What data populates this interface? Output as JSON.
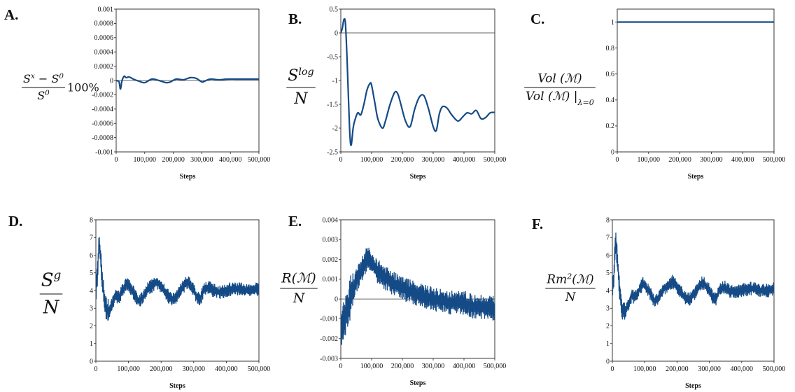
{
  "chart_data": [
    {
      "id": "A",
      "panel_label": "A.",
      "type": "line",
      "style": "smooth",
      "ylabel": {
        "num": "S",
        "num_sup": "x",
        "num_rest": " − S",
        "num_rest_sup": "0",
        "den": "S",
        "den_sup": "0",
        "suffix": "100%"
      },
      "xlabel": "Steps",
      "xlim": [
        0,
        500000
      ],
      "ylim": [
        -0.001,
        0.001
      ],
      "xticks": [
        0,
        100000,
        200000,
        300000,
        400000,
        500000
      ],
      "xtick_labels": [
        "0",
        "100,000",
        "200,000",
        "300,000",
        "400,000",
        "500,000"
      ],
      "yticks": [
        -0.001,
        -0.0008,
        -0.0006,
        -0.0004,
        -0.0002,
        0,
        0.0002,
        0.0004,
        0.0006,
        0.0008,
        0.001
      ],
      "ytick_labels": [
        "-0.001",
        "-0.0008",
        "-0.0006",
        "-0.0004",
        "-0.0002",
        "0",
        "0.0002",
        "0.0004",
        "0.0006",
        "0.0008",
        "0.001"
      ],
      "zero_line": true,
      "series": [
        {
          "name": "A",
          "x": [
            0,
            10000,
            15000,
            20000,
            28000,
            35000,
            45000,
            60000,
            80000,
            100000,
            125000,
            150000,
            175000,
            190000,
            210000,
            235000,
            260000,
            280000,
            300000,
            310000,
            330000,
            360000,
            390000,
            420000,
            450000,
            480000,
            500000
          ],
          "y": [
            0,
            -2e-05,
            -0.00012,
            -1e-05,
            6e-05,
            4e-05,
            5e-05,
            2e-05,
            -1e-05,
            -3e-05,
            2e-05,
            0,
            -3e-05,
            -2e-05,
            2e-05,
            1e-05,
            4e-05,
            3e-05,
            -2e-05,
            -1e-05,
            2e-05,
            1e-05,
            2e-05,
            2e-05,
            2e-05,
            2e-05,
            2e-05
          ]
        }
      ]
    },
    {
      "id": "B",
      "panel_label": "B.",
      "type": "line",
      "style": "smooth",
      "ylabel": {
        "num": "S",
        "num_sup": "log",
        "den": "N"
      },
      "xlabel": "Steps",
      "xlim": [
        0,
        500000
      ],
      "ylim": [
        -2.5,
        0.5
      ],
      "xticks": [
        0,
        100000,
        200000,
        300000,
        400000,
        500000
      ],
      "xtick_labels": [
        "0",
        "100,000",
        "200,000",
        "300,000",
        "400,000",
        "500,000"
      ],
      "yticks": [
        -2.5,
        -2,
        -1.5,
        -1,
        -0.5,
        0,
        0.5
      ],
      "ytick_labels": [
        "-2.5",
        "-2",
        "-1.5",
        "-1",
        "-0.5",
        "0",
        "0.5"
      ],
      "zero_line": true,
      "series": [
        {
          "name": "B",
          "x": [
            0,
            5000,
            10000,
            15000,
            20000,
            25000,
            30000,
            34000,
            40000,
            45000,
            55000,
            65000,
            75000,
            85000,
            95000,
            100000,
            110000,
            120000,
            135000,
            145000,
            160000,
            175000,
            185000,
            195000,
            210000,
            225000,
            240000,
            255000,
            270000,
            285000,
            300000,
            310000,
            320000,
            330000,
            345000,
            360000,
            380000,
            395000,
            410000,
            425000,
            440000,
            455000,
            470000,
            485000,
            500000
          ],
          "y": [
            0,
            0.1,
            0.28,
            0.2,
            -0.5,
            -1.4,
            -2.2,
            -2.35,
            -2.0,
            -1.85,
            -1.68,
            -1.72,
            -1.5,
            -1.2,
            -1.06,
            -1.1,
            -1.45,
            -1.8,
            -2.0,
            -1.85,
            -1.5,
            -1.25,
            -1.28,
            -1.5,
            -1.85,
            -1.97,
            -1.6,
            -1.35,
            -1.32,
            -1.6,
            -1.97,
            -2.05,
            -1.7,
            -1.55,
            -1.58,
            -1.72,
            -1.85,
            -1.77,
            -1.68,
            -1.7,
            -1.63,
            -1.8,
            -1.78,
            -1.68,
            -1.67
          ]
        }
      ]
    },
    {
      "id": "C",
      "panel_label": "C.",
      "type": "line",
      "style": "smooth",
      "ylabel": {
        "num": "Vol (ℳ)",
        "den": "Vol (ℳ) |",
        "den_sub": "λ=0"
      },
      "xlabel": "Steps",
      "xlim": [
        0,
        500000
      ],
      "ylim": [
        0,
        1.1
      ],
      "xticks": [
        0,
        100000,
        200000,
        300000,
        400000,
        500000
      ],
      "xtick_labels": [
        "0",
        "100,000",
        "200,000",
        "300,000",
        "400,000",
        "500,000"
      ],
      "yticks": [
        0,
        0.2,
        0.4,
        0.6,
        0.8,
        1
      ],
      "ytick_labels": [
        "0",
        "0.2",
        "0.4",
        "0.6",
        "0.8",
        "1"
      ],
      "zero_line": false,
      "series": [
        {
          "name": "C",
          "x": [
            0,
            100000,
            200000,
            300000,
            400000,
            500000
          ],
          "y": [
            1,
            1,
            1,
            1,
            1,
            1
          ]
        }
      ]
    },
    {
      "id": "D",
      "panel_label": "D.",
      "type": "line",
      "style": "noisy",
      "ylabel": {
        "num": "S",
        "num_sup": "g",
        "den": "N"
      },
      "xlabel": "Steps",
      "xlim": [
        0,
        500000
      ],
      "ylim": [
        0,
        8
      ],
      "xticks": [
        0,
        100000,
        200000,
        300000,
        400000,
        500000
      ],
      "xtick_labels": [
        "0",
        "100,000",
        "200,000",
        "300,000",
        "400,000",
        "500,000"
      ],
      "yticks": [
        0,
        1,
        2,
        3,
        4,
        5,
        6,
        7,
        8
      ],
      "ytick_labels": [
        "0",
        "1",
        "2",
        "3",
        "4",
        "5",
        "6",
        "7",
        "8"
      ],
      "zero_line": false,
      "noise_amplitude": 0.28,
      "series": [
        {
          "name": "D",
          "x": [
            0,
            5000,
            10000,
            15000,
            20000,
            25000,
            30000,
            40000,
            50000,
            60000,
            70000,
            85000,
            95000,
            100000,
            115000,
            130000,
            145000,
            160000,
            175000,
            185000,
            195000,
            210000,
            225000,
            240000,
            260000,
            275000,
            285000,
            300000,
            310000,
            320000,
            330000,
            345000,
            360000,
            380000,
            400000,
            420000,
            440000,
            460000,
            480000,
            500000
          ],
          "y": [
            3.8,
            5.0,
            6.8,
            5.8,
            4.5,
            3.6,
            3.0,
            2.8,
            3.2,
            3.7,
            3.6,
            4.1,
            4.4,
            4.3,
            3.9,
            3.4,
            3.6,
            4.1,
            4.3,
            4.5,
            4.3,
            4.0,
            3.6,
            3.5,
            4.0,
            4.4,
            4.4,
            4.0,
            3.6,
            3.5,
            4.0,
            4.2,
            4.0,
            3.9,
            4.0,
            4.1,
            4.1,
            4.0,
            4.0,
            4.1
          ]
        }
      ]
    },
    {
      "id": "E",
      "panel_label": "E.",
      "type": "line",
      "style": "noisy",
      "ylabel": {
        "num": "R(ℳ)",
        "den": "N"
      },
      "xlabel": "Steps",
      "xlim": [
        0,
        500000
      ],
      "ylim": [
        -0.003,
        0.004
      ],
      "xticks": [
        0,
        100000,
        200000,
        300000,
        400000,
        500000
      ],
      "xtick_labels": [
        "0",
        "100,000",
        "200,000",
        "300,000",
        "400,000",
        "500,000"
      ],
      "yticks": [
        -0.003,
        -0.002,
        -0.001,
        0,
        0.001,
        0.002,
        0.003,
        0.004
      ],
      "ytick_labels": [
        "-0.003",
        "-0.002",
        "-0.001",
        "0",
        "0.001",
        "0.002",
        "0.003",
        "0.004"
      ],
      "zero_line": true,
      "noise_amplitude": 0.00045,
      "series": [
        {
          "name": "E",
          "x": [
            0,
            5000,
            10000,
            20000,
            30000,
            40000,
            50000,
            60000,
            70000,
            80000,
            90000,
            100000,
            110000,
            120000,
            140000,
            160000,
            180000,
            200000,
            220000,
            250000,
            280000,
            300000,
            330000,
            360000,
            380000,
            400000,
            430000,
            460000,
            480000,
            500000
          ],
          "y": [
            -0.0016,
            -0.0013,
            -0.001,
            -0.0005,
            0,
            0.0005,
            0.0009,
            0.0012,
            0.0015,
            0.0019,
            0.0021,
            0.0018,
            0.0016,
            0.0014,
            0.0011,
            0.0009,
            0.0007,
            0.0005,
            0.0004,
            0.0002,
            0.0001,
            0,
            -0.0001,
            -0.0002,
            -0.0001,
            -0.0002,
            -0.0004,
            -0.0004,
            -0.0004,
            -0.0005
          ]
        }
      ]
    },
    {
      "id": "F",
      "panel_label": "F.",
      "type": "line",
      "style": "noisy",
      "ylabel": {
        "num": "Rm",
        "num_sup": "2",
        "num_rest": "(ℳ)",
        "den": "N"
      },
      "xlabel": "Steps",
      "xlim": [
        0,
        500000
      ],
      "ylim": [
        0,
        8
      ],
      "xticks": [
        0,
        100000,
        200000,
        300000,
        400000,
        500000
      ],
      "xtick_labels": [
        "0",
        "100,000",
        "200,000",
        "300,000",
        "400,000",
        "500,000"
      ],
      "yticks": [
        0,
        1,
        2,
        3,
        4,
        5,
        6,
        7,
        8
      ],
      "ytick_labels": [
        "0",
        "1",
        "2",
        "3",
        "4",
        "5",
        "6",
        "7",
        "8"
      ],
      "zero_line": false,
      "noise_amplitude": 0.28,
      "series": [
        {
          "name": "F",
          "x": [
            0,
            5000,
            10000,
            15000,
            20000,
            25000,
            30000,
            40000,
            50000,
            60000,
            70000,
            85000,
            95000,
            100000,
            115000,
            130000,
            145000,
            160000,
            175000,
            185000,
            195000,
            210000,
            225000,
            240000,
            260000,
            275000,
            285000,
            300000,
            310000,
            320000,
            330000,
            345000,
            360000,
            380000,
            400000,
            420000,
            440000,
            460000,
            480000,
            500000
          ],
          "y": [
            3.8,
            5.0,
            6.8,
            5.8,
            4.5,
            3.6,
            3.0,
            2.8,
            3.2,
            3.7,
            3.6,
            4.1,
            4.4,
            4.3,
            3.9,
            3.4,
            3.6,
            4.1,
            4.3,
            4.5,
            4.3,
            4.0,
            3.6,
            3.5,
            4.0,
            4.4,
            4.4,
            4.0,
            3.6,
            3.5,
            4.0,
            4.2,
            4.0,
            3.9,
            4.0,
            4.1,
            4.1,
            4.0,
            4.0,
            4.1
          ]
        }
      ]
    }
  ],
  "colors": {
    "series": "#144a86",
    "axis": "#222222"
  }
}
